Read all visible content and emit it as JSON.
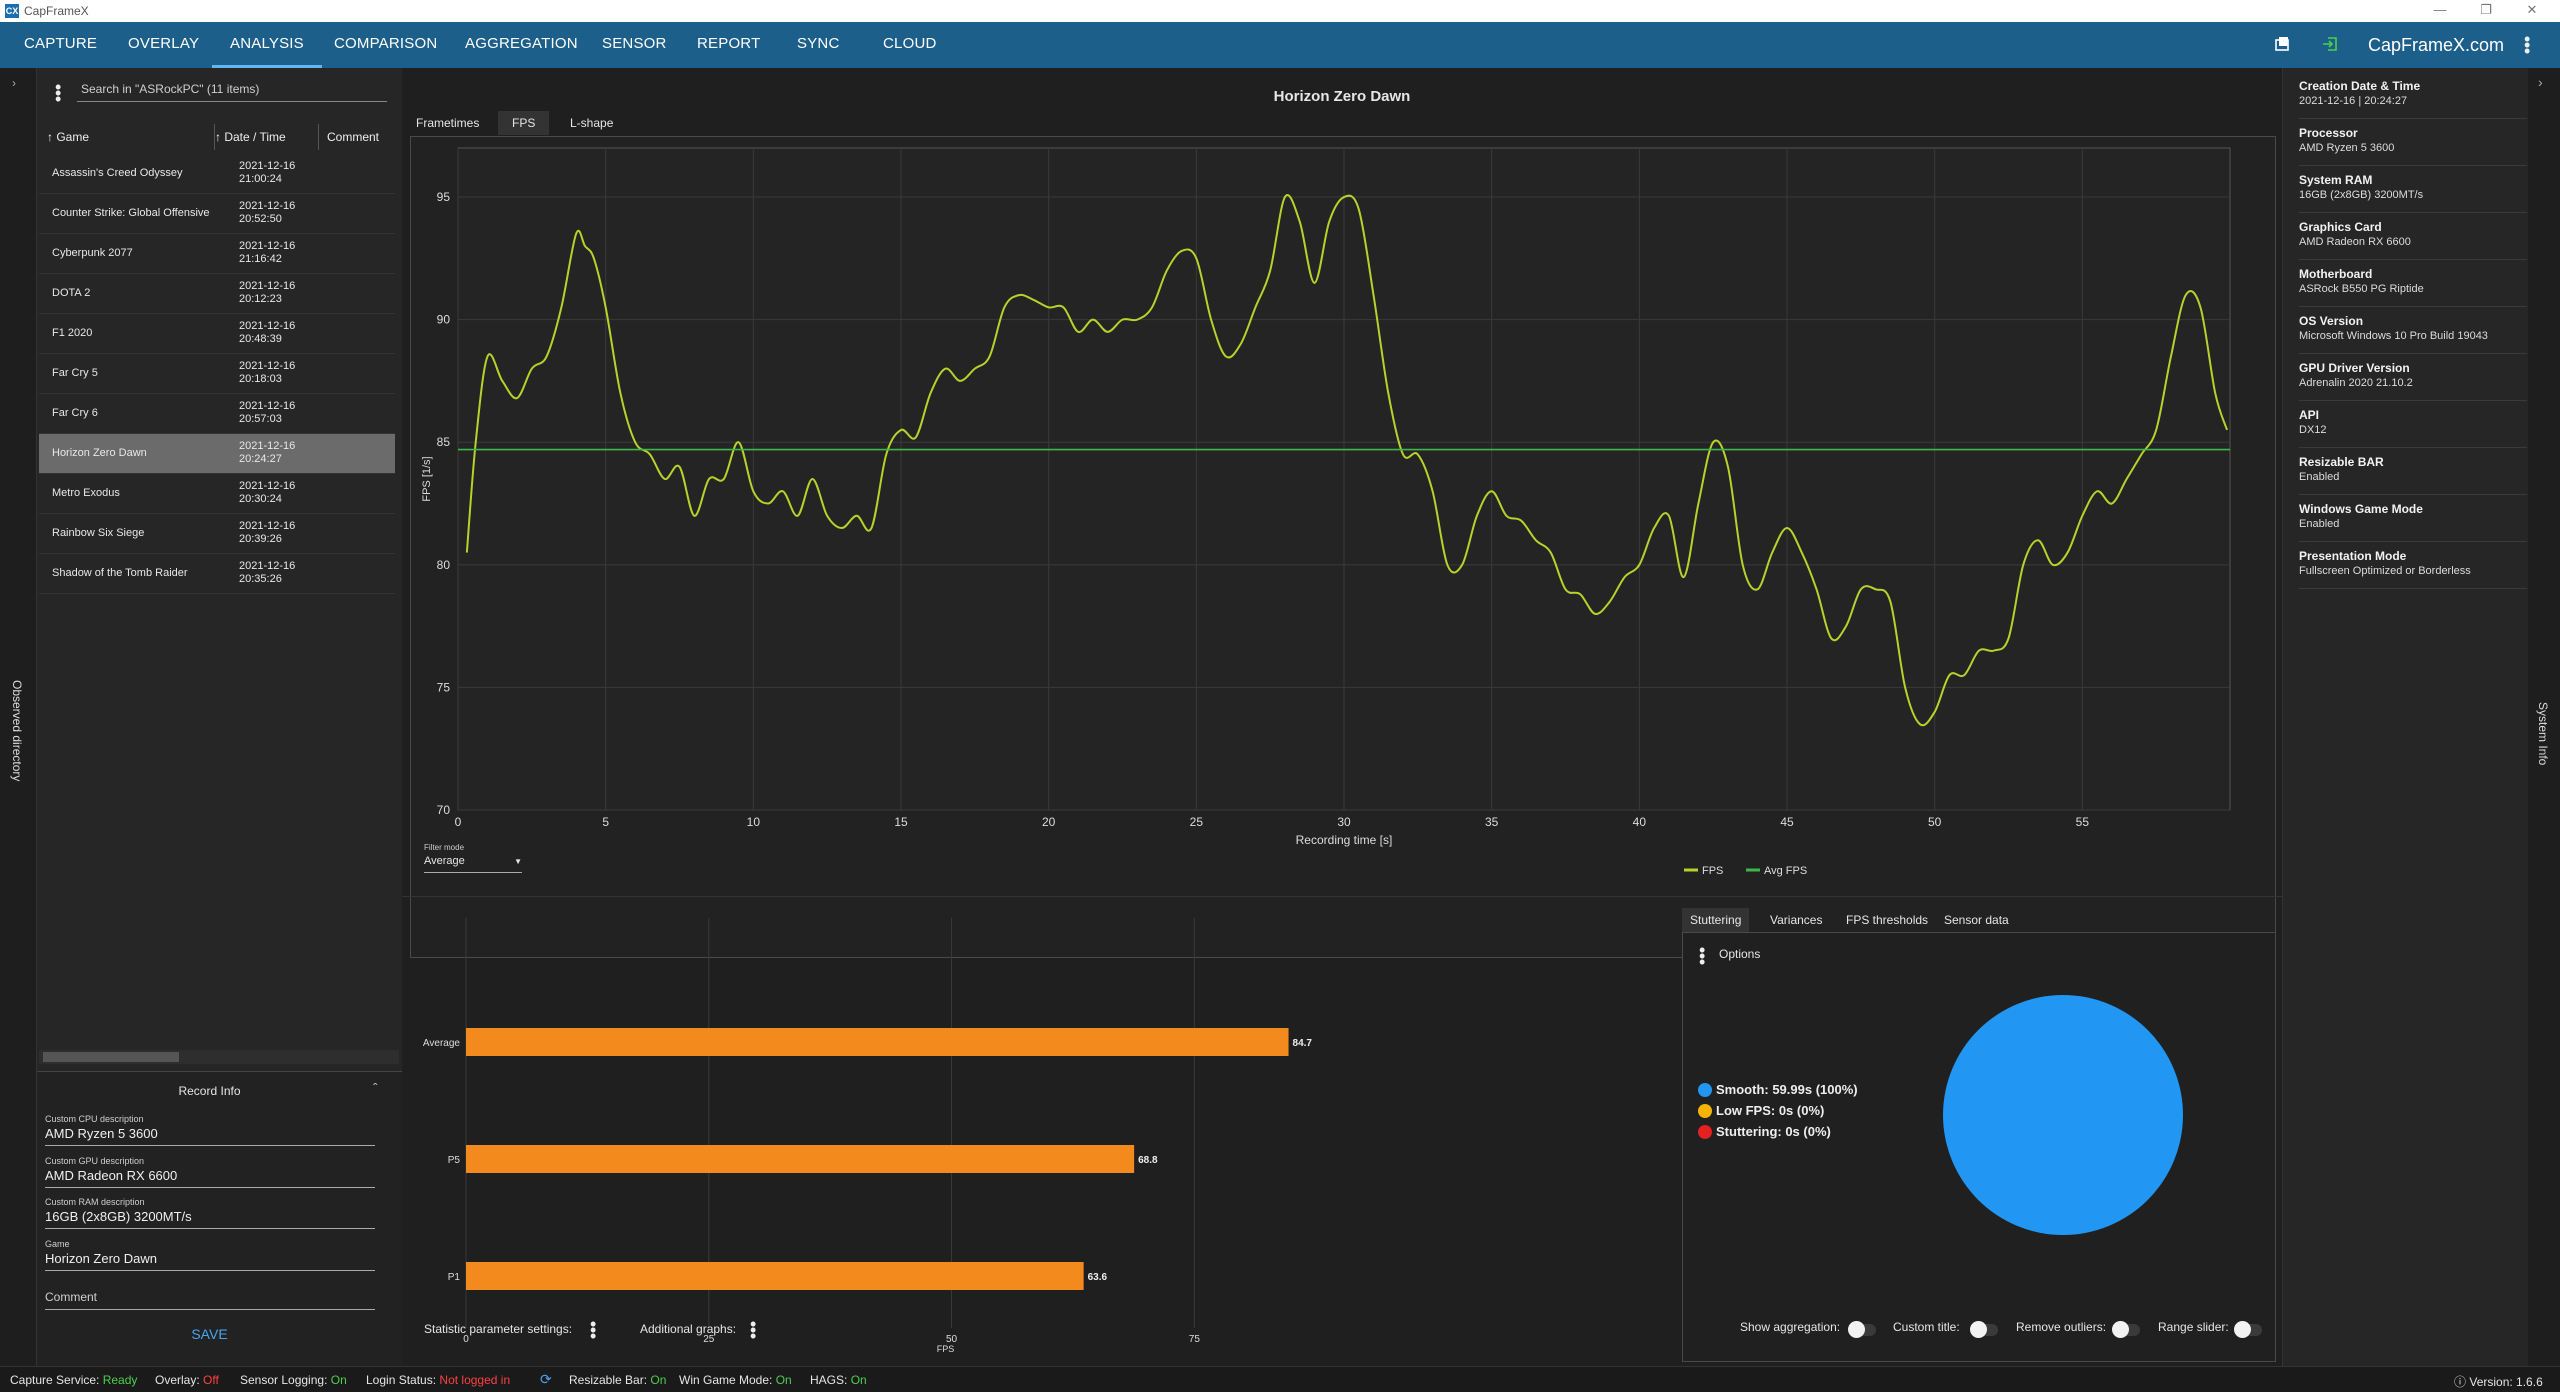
{
  "window": {
    "title": "CapFrameX",
    "icon_text": "CX"
  },
  "nav": {
    "items": [
      "CAPTURE",
      "OVERLAY",
      "ANALYSIS",
      "COMPARISON",
      "AGGREGATION",
      "SENSOR",
      "REPORT",
      "SYNC",
      "CLOUD"
    ],
    "active": "ANALYSIS",
    "brand": "CapFrameX.com"
  },
  "left": {
    "strip_label": "Observed directory",
    "search_placeholder": "Search in \"ASRockPC\" (11 items)",
    "columns": {
      "game": "Game",
      "date": "Date / Time",
      "comment": "Comment"
    },
    "rows": [
      {
        "game": "Assassin's Creed Odyssey",
        "date": "2021-12-16",
        "time": "21:00:24"
      },
      {
        "game": "Counter Strike: Global Offensive",
        "date": "2021-12-16",
        "time": "20:52:50"
      },
      {
        "game": "Cyberpunk 2077",
        "date": "2021-12-16",
        "time": "21:16:42"
      },
      {
        "game": "DOTA 2",
        "date": "2021-12-16",
        "time": "20:12:23"
      },
      {
        "game": "F1 2020",
        "date": "2021-12-16",
        "time": "20:48:39"
      },
      {
        "game": "Far Cry 5",
        "date": "2021-12-16",
        "time": "20:18:03"
      },
      {
        "game": "Far Cry 6",
        "date": "2021-12-16",
        "time": "20:57:03"
      },
      {
        "game": "Horizon Zero Dawn",
        "date": "2021-12-16",
        "time": "20:24:27"
      },
      {
        "game": "Metro Exodus",
        "date": "2021-12-16",
        "time": "20:30:24"
      },
      {
        "game": "Rainbow Six Siege",
        "date": "2021-12-16",
        "time": "20:39:26"
      },
      {
        "game": "Shadow of the Tomb Raider",
        "date": "2021-12-16",
        "time": "20:35:26"
      }
    ],
    "selected_index": 7,
    "record_info": {
      "title": "Record Info",
      "cpu_label": "Custom CPU description",
      "cpu": "AMD Ryzen 5 3600",
      "gpu_label": "Custom GPU description",
      "gpu": "AMD Radeon RX 6600",
      "ram_label": "Custom RAM description",
      "ram": "16GB (2x8GB) 3200MT/s",
      "game_label": "Game",
      "game": "Horizon Zero Dawn",
      "comment_placeholder": "Comment",
      "save": "SAVE"
    }
  },
  "center": {
    "tabs": [
      "Frametimes",
      "FPS",
      "L-shape"
    ],
    "active_tab": "FPS",
    "filter_label": "Filter mode",
    "filter_value": "Average",
    "stats_tabs": [
      "Stuttering",
      "Variances",
      "FPS thresholds",
      "Sensor data"
    ],
    "active_stats_tab": "Stuttering",
    "options_label": "Options",
    "bottom_left": {
      "stat_settings": "Statistic parameter settings:",
      "additional_graphs": "Additional graphs:"
    },
    "toggles": [
      "Show aggregation:",
      "Custom title:",
      "Remove outliers:",
      "Range slider:"
    ]
  },
  "chart_data": [
    {
      "type": "line",
      "title": "Horizon Zero Dawn",
      "xlabel": "Recording time [s]",
      "ylabel": "FPS [1/s]",
      "xlim": [
        0,
        60
      ],
      "ylim": [
        70,
        97
      ],
      "xticks": [
        0,
        5,
        10,
        15,
        20,
        25,
        30,
        35,
        40,
        45,
        50,
        55
      ],
      "yticks": [
        70,
        75,
        80,
        85,
        90,
        95
      ],
      "grid": true,
      "legend": "bottom-center",
      "series": [
        {
          "name": "FPS",
          "color": "#b5d32a",
          "x": [
            0.3,
            0.6,
            1,
            1.5,
            2,
            2.5,
            3,
            3.5,
            4,
            4.3,
            4.6,
            5,
            5.5,
            6,
            6.5,
            7,
            7.5,
            8,
            8.5,
            9,
            9.5,
            10,
            10.5,
            11,
            11.5,
            12,
            12.5,
            13,
            13.5,
            14,
            14.5,
            15,
            15.5,
            16,
            16.5,
            17,
            17.5,
            18,
            18.5,
            19,
            19.5,
            20,
            20.5,
            21,
            21.5,
            22,
            22.5,
            23,
            23.5,
            24,
            24.5,
            25,
            25.5,
            26,
            26.5,
            27,
            27.5,
            28,
            28.5,
            29,
            29.5,
            30,
            30.5,
            31,
            31.5,
            32,
            32.5,
            33,
            33.5,
            34,
            34.5,
            35,
            35.5,
            36,
            36.5,
            37,
            37.5,
            38,
            38.5,
            39,
            39.5,
            40,
            40.5,
            41,
            41.5,
            42,
            42.5,
            43,
            43.5,
            44,
            44.5,
            45,
            45.5,
            46,
            46.5,
            47,
            47.5,
            48,
            48.5,
            49,
            49.5,
            50,
            50.5,
            51,
            51.5,
            52,
            52.5,
            53,
            53.5,
            54,
            54.5,
            55,
            55.5,
            56,
            56.5,
            57,
            57.5,
            58,
            58.5,
            59,
            59.5,
            59.9
          ],
          "y": [
            80.5,
            85,
            88.5,
            87.5,
            86.8,
            88,
            88.5,
            90.5,
            93.5,
            93,
            92.5,
            90.5,
            87,
            85,
            84.5,
            83.5,
            84,
            82,
            83.5,
            83.5,
            85,
            83,
            82.5,
            83,
            82,
            83.5,
            82,
            81.5,
            82,
            81.5,
            84.5,
            85.5,
            85.2,
            87,
            88,
            87.5,
            88,
            88.5,
            90.5,
            91,
            90.8,
            90.5,
            90.5,
            89.5,
            90,
            89.5,
            90,
            90,
            90.5,
            92,
            92.8,
            92.5,
            90,
            88.5,
            89,
            90.5,
            92,
            95,
            94,
            91.5,
            94,
            95,
            94.5,
            91,
            87,
            84.5,
            84.5,
            83,
            80,
            80,
            82,
            83,
            82,
            81.8,
            81,
            80.5,
            79,
            78.8,
            78,
            78.5,
            79.5,
            80,
            81.5,
            82,
            79.5,
            82.5,
            85,
            84,
            80,
            79,
            80.5,
            81.5,
            80.5,
            79,
            77,
            77.5,
            79,
            79,
            78.5,
            75,
            73.5,
            74,
            75.5,
            75.5,
            76.5,
            76.5,
            77,
            80,
            81,
            80,
            80.5,
            82,
            83,
            82.5,
            83.5,
            84.5,
            85.5,
            88.5,
            91,
            90.5,
            87,
            85.5
          ]
        },
        {
          "name": "Avg FPS",
          "color": "#3cb84a",
          "x": [
            0,
            60
          ],
          "y": [
            84.7,
            84.7
          ]
        }
      ]
    },
    {
      "type": "bar",
      "orientation": "horizontal",
      "categories": [
        "Average",
        "P5",
        "P1"
      ],
      "values": [
        84.7,
        68.8,
        63.6
      ],
      "xlabel": "FPS",
      "xlim": [
        0,
        90
      ],
      "xticks": [
        0,
        25,
        50,
        75
      ],
      "color": "#f28a1e"
    },
    {
      "type": "pie",
      "labels": [
        "Smooth",
        "Low FPS",
        "Stuttering"
      ],
      "values": [
        100,
        0,
        0
      ],
      "legend_text": [
        "Smooth:  59.99s (100%)",
        "Low FPS:  0s (0%)",
        "Stuttering:  0s (0%)"
      ],
      "colors": [
        "#2196f3",
        "#f5b400",
        "#e52020"
      ],
      "legend": "left"
    }
  ],
  "right": {
    "strip_label": "System Info",
    "items": [
      {
        "k": "Creation Date & Time",
        "v": "2021-12-16  |  20:24:27"
      },
      {
        "k": "Processor",
        "v": "AMD Ryzen 5 3600"
      },
      {
        "k": "System RAM",
        "v": "16GB (2x8GB) 3200MT/s"
      },
      {
        "k": "Graphics Card",
        "v": "AMD Radeon RX 6600"
      },
      {
        "k": "Motherboard",
        "v": "ASRock B550 PG Riptide"
      },
      {
        "k": "OS Version",
        "v": "Microsoft Windows 10 Pro Build 19043"
      },
      {
        "k": "GPU Driver Version",
        "v": "Adrenalin 2020 21.10.2"
      },
      {
        "k": "API",
        "v": "DX12"
      },
      {
        "k": "Resizable BAR",
        "v": "Enabled"
      },
      {
        "k": "Windows Game Mode",
        "v": "Enabled"
      },
      {
        "k": "Presentation Mode",
        "v": "Fullscreen Optimized or Borderless"
      }
    ]
  },
  "status": {
    "capture_label": "Capture Service:",
    "capture_value": "Ready",
    "overlay_label": "Overlay:",
    "overlay_value": "Off",
    "sensor_label": "Sensor Logging:",
    "sensor_value": "On",
    "login_label": "Login Status:",
    "login_value": "Not logged in",
    "rebar_label": "Resizable Bar:",
    "rebar_value": "On",
    "gamemode_label": "Win Game Mode:",
    "gamemode_value": "On",
    "hags_label": "HAGS:",
    "hags_value": "On",
    "version": "Version: 1.6.6"
  }
}
